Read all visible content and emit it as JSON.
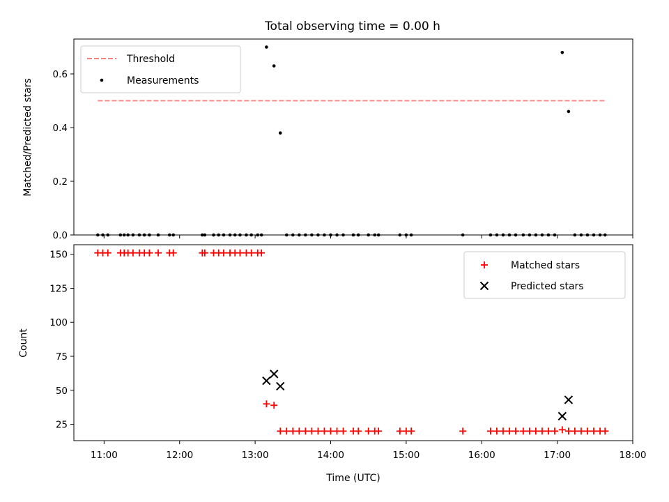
{
  "chart_data": [
    {
      "type": "scatter",
      "title": "Total observing time = 0.00 h",
      "xlabel": "",
      "ylabel": "Matched/Predicted stars",
      "xlim": [
        "10:36",
        "18:00"
      ],
      "ylim": [
        0,
        0.73
      ],
      "yticks": [
        "0.0",
        "0.2",
        "0.4",
        "0.6"
      ],
      "legend": {
        "placement": "top-left"
      },
      "threshold": {
        "name": "Threshold",
        "value": 0.5,
        "x_start": "10:55",
        "x_end": "17:39",
        "color": "#ff7f7f"
      },
      "series": [
        {
          "name": "Measurements",
          "color": "#000000",
          "points": [
            [
              "10:55",
              0
            ],
            [
              "10:59",
              0
            ],
            [
              "11:03",
              0
            ],
            [
              "11:13",
              0
            ],
            [
              "11:16",
              0
            ],
            [
              "11:19",
              0
            ],
            [
              "11:23",
              0
            ],
            [
              "11:28",
              0
            ],
            [
              "11:32",
              0
            ],
            [
              "11:36",
              0
            ],
            [
              "11:43",
              0
            ],
            [
              "11:52",
              0
            ],
            [
              "11:55",
              0
            ],
            [
              "12:18",
              0
            ],
            [
              "12:20",
              0
            ],
            [
              "12:27",
              0
            ],
            [
              "12:31",
              0
            ],
            [
              "12:35",
              0
            ],
            [
              "12:40",
              0
            ],
            [
              "12:44",
              0
            ],
            [
              "12:48",
              0
            ],
            [
              "12:53",
              0
            ],
            [
              "12:57",
              0
            ],
            [
              "13:02",
              0
            ],
            [
              "13:05",
              0
            ],
            [
              "13:09",
              0.7
            ],
            [
              "13:15",
              0.63
            ],
            [
              "13:20",
              0.38
            ],
            [
              "13:25",
              0
            ],
            [
              "13:30",
              0
            ],
            [
              "13:35",
              0
            ],
            [
              "13:40",
              0
            ],
            [
              "13:45",
              0
            ],
            [
              "13:50",
              0
            ],
            [
              "13:55",
              0
            ],
            [
              "14:00",
              0
            ],
            [
              "14:05",
              0
            ],
            [
              "14:10",
              0
            ],
            [
              "14:18",
              0
            ],
            [
              "14:22",
              0
            ],
            [
              "14:30",
              0
            ],
            [
              "14:35",
              0
            ],
            [
              "14:38",
              0
            ],
            [
              "14:55",
              0
            ],
            [
              "15:00",
              0
            ],
            [
              "15:04",
              0
            ],
            [
              "15:45",
              0
            ],
            [
              "16:07",
              0
            ],
            [
              "16:12",
              0
            ],
            [
              "16:17",
              0
            ],
            [
              "16:22",
              0
            ],
            [
              "16:27",
              0
            ],
            [
              "16:33",
              0
            ],
            [
              "16:38",
              0
            ],
            [
              "16:43",
              0
            ],
            [
              "16:48",
              0
            ],
            [
              "16:53",
              0
            ],
            [
              "16:58",
              0
            ],
            [
              "17:04",
              0.68
            ],
            [
              "17:09",
              0.46
            ],
            [
              "17:14",
              0
            ],
            [
              "17:19",
              0
            ],
            [
              "17:24",
              0
            ],
            [
              "17:29",
              0
            ],
            [
              "17:34",
              0
            ],
            [
              "17:38",
              0
            ]
          ]
        }
      ]
    },
    {
      "type": "scatter",
      "title": "",
      "xlabel": "Time (UTC)",
      "ylabel": "Count",
      "xlim": [
        "10:36",
        "18:00"
      ],
      "ylim": [
        13,
        157
      ],
      "xticks": [
        "11:00",
        "12:00",
        "13:00",
        "14:00",
        "15:00",
        "16:00",
        "17:00",
        "18:00"
      ],
      "yticks": [
        "25",
        "50",
        "75",
        "100",
        "125",
        "150"
      ],
      "legend": {
        "placement": "top-right"
      },
      "series": [
        {
          "name": "Matched stars",
          "marker": "+",
          "color": "#ff0000",
          "points": [
            [
              "10:55",
              151
            ],
            [
              "10:59",
              151
            ],
            [
              "11:03",
              151
            ],
            [
              "11:13",
              151
            ],
            [
              "11:16",
              151
            ],
            [
              "11:19",
              151
            ],
            [
              "11:23",
              151
            ],
            [
              "11:28",
              151
            ],
            [
              "11:32",
              151
            ],
            [
              "11:36",
              151
            ],
            [
              "11:43",
              151
            ],
            [
              "11:52",
              151
            ],
            [
              "11:55",
              151
            ],
            [
              "12:18",
              151
            ],
            [
              "12:20",
              151
            ],
            [
              "12:27",
              151
            ],
            [
              "12:31",
              151
            ],
            [
              "12:35",
              151
            ],
            [
              "12:40",
              151
            ],
            [
              "12:44",
              151
            ],
            [
              "12:48",
              151
            ],
            [
              "12:53",
              151
            ],
            [
              "12:57",
              151
            ],
            [
              "13:02",
              151
            ],
            [
              "13:05",
              151
            ],
            [
              "13:09",
              40
            ],
            [
              "13:15",
              39
            ],
            [
              "13:20",
              20
            ],
            [
              "13:25",
              20
            ],
            [
              "13:30",
              20
            ],
            [
              "13:35",
              20
            ],
            [
              "13:40",
              20
            ],
            [
              "13:45",
              20
            ],
            [
              "13:50",
              20
            ],
            [
              "13:55",
              20
            ],
            [
              "14:00",
              20
            ],
            [
              "14:05",
              20
            ],
            [
              "14:10",
              20
            ],
            [
              "14:18",
              20
            ],
            [
              "14:22",
              20
            ],
            [
              "14:30",
              20
            ],
            [
              "14:35",
              20
            ],
            [
              "14:38",
              20
            ],
            [
              "14:55",
              20
            ],
            [
              "15:00",
              20
            ],
            [
              "15:04",
              20
            ],
            [
              "15:45",
              20
            ],
            [
              "16:07",
              20
            ],
            [
              "16:12",
              20
            ],
            [
              "16:17",
              20
            ],
            [
              "16:22",
              20
            ],
            [
              "16:27",
              20
            ],
            [
              "16:33",
              20
            ],
            [
              "16:38",
              20
            ],
            [
              "16:43",
              20
            ],
            [
              "16:48",
              20
            ],
            [
              "16:53",
              20
            ],
            [
              "16:58",
              20
            ],
            [
              "17:04",
              21
            ],
            [
              "17:09",
              20
            ],
            [
              "17:14",
              20
            ],
            [
              "17:19",
              20
            ],
            [
              "17:24",
              20
            ],
            [
              "17:29",
              20
            ],
            [
              "17:34",
              20
            ],
            [
              "17:38",
              20
            ]
          ]
        },
        {
          "name": "Predicted stars",
          "marker": "x",
          "color": "#000000",
          "points": [
            [
              "13:09",
              57
            ],
            [
              "13:15",
              62
            ],
            [
              "13:20",
              53
            ],
            [
              "17:04",
              31
            ],
            [
              "17:09",
              43
            ]
          ]
        }
      ]
    }
  ]
}
